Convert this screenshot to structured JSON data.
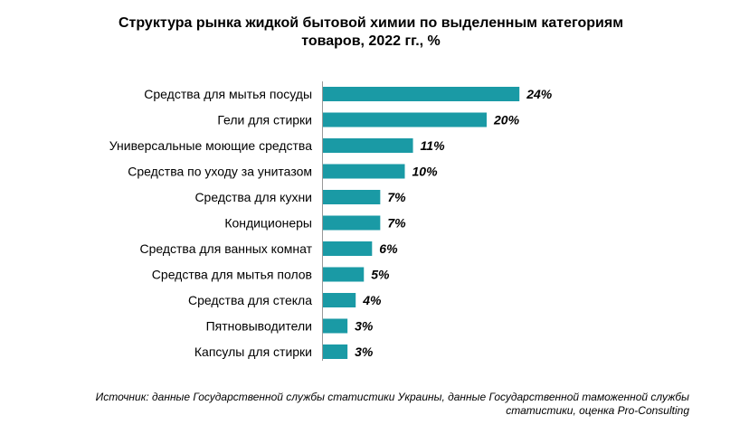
{
  "chart_data": {
    "type": "bar",
    "orientation": "horizontal",
    "title_line1": "Структура рынка жидкой бытовой химии по выделенным категориям",
    "title_line2": "товаров, 2022 гг., %",
    "categories": [
      "Средства для мытья посуды",
      "Гели для стирки",
      "Универсальные моющие средства",
      "Средства по уходу за унитазом",
      "Средства для кухни",
      "Кондиционеры",
      "Средства для ванных комнат",
      "Средства для мытья полов",
      "Средства для стекла",
      "Пятновыводители",
      "Капсулы для стирки"
    ],
    "values": [
      24,
      20,
      11,
      10,
      7,
      7,
      6,
      5,
      4,
      3,
      3
    ],
    "value_labels": [
      "24%",
      "20%",
      "11%",
      "10%",
      "7%",
      "7%",
      "6%",
      "5%",
      "4%",
      "3%",
      "3%"
    ],
    "bar_color": "#1a9aa5",
    "grid": false,
    "legend": "none"
  },
  "source_line1": "Источник: данные Государственной службы статистики Украины, данные Государственной таможенной службы",
  "source_line2": "статистики, оценка Pro-Consulting"
}
